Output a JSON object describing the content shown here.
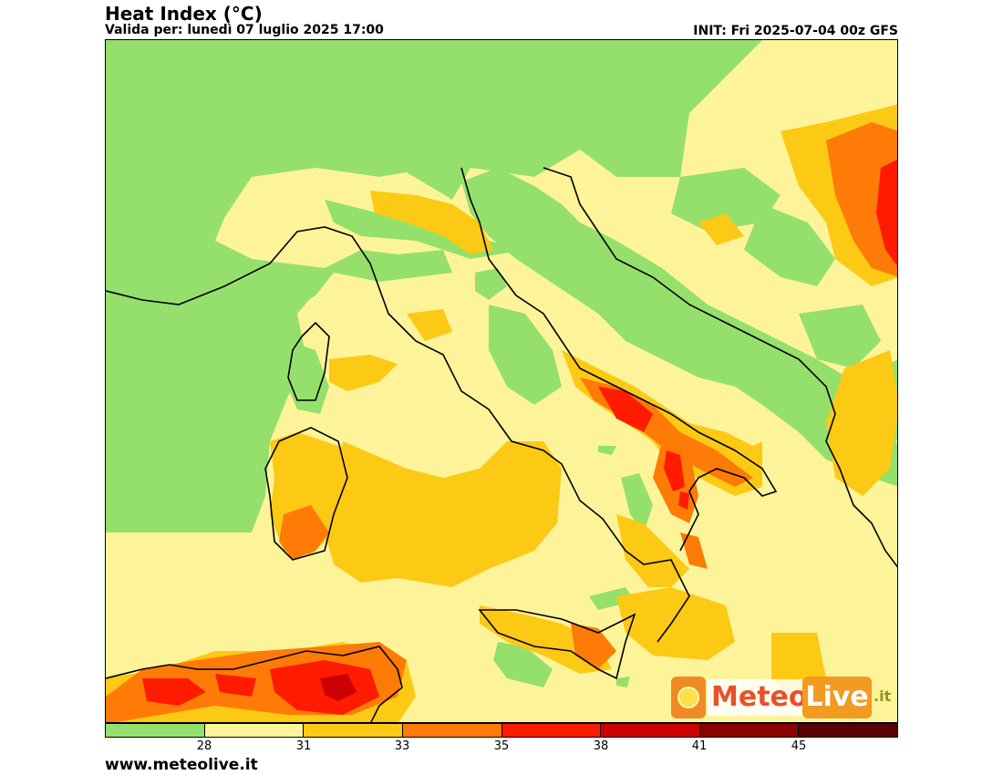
{
  "header": {
    "title": "Heat Index (°C)",
    "valid": "Valida per: lunedì 07 luglio 2025 17:00",
    "init": "INIT: Fri 2025-07-04 00z GFS"
  },
  "legend": {
    "colors": [
      "#95e06c",
      "#fdf49a",
      "#fcc915",
      "#fd7b06",
      "#ff1b00",
      "#cc0000",
      "#8b0000",
      "#5a0000"
    ],
    "ticks": [
      "28",
      "31",
      "33",
      "35",
      "38",
      "41",
      "45"
    ]
  },
  "footer": {
    "site": "www.meteolive.it"
  },
  "logo": {
    "meteo": "Meteo",
    "live": "Live",
    "tld": ".it",
    "icon": "sun-icon"
  }
}
